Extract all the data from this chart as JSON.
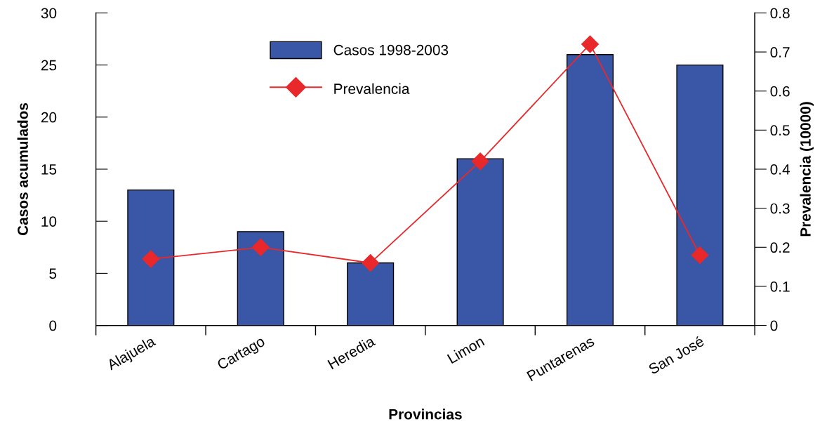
{
  "chart_data": {
    "type": "bar",
    "xlabel": "Provincias",
    "ylabel": "Casos acumulados",
    "y2label": "Prevalencia (10000)",
    "categories": [
      "Alajuela",
      "Cartago",
      "Heredia",
      "Limon",
      "Puntarenas",
      "San José"
    ],
    "series": [
      {
        "name": "Casos 1998-2003",
        "color": "#3a56a6",
        "values": [
          13,
          9,
          6,
          16,
          26,
          25
        ]
      },
      {
        "name": "Prevalencia",
        "type": "line",
        "axis": "y2",
        "color": "#e8282b",
        "marker": "diamond",
        "values": [
          0.17,
          0.2,
          0.16,
          0.42,
          0.72,
          0.18
        ]
      }
    ],
    "ylim": [
      0,
      30
    ],
    "yticks": [
      0,
      5,
      10,
      15,
      20,
      25,
      30
    ],
    "y2lim": [
      0,
      0.8
    ],
    "y2ticks": [
      0,
      0.1,
      0.2,
      0.3,
      0.4,
      0.5,
      0.6,
      0.7,
      0.8
    ],
    "grid": false,
    "legend": "top"
  }
}
